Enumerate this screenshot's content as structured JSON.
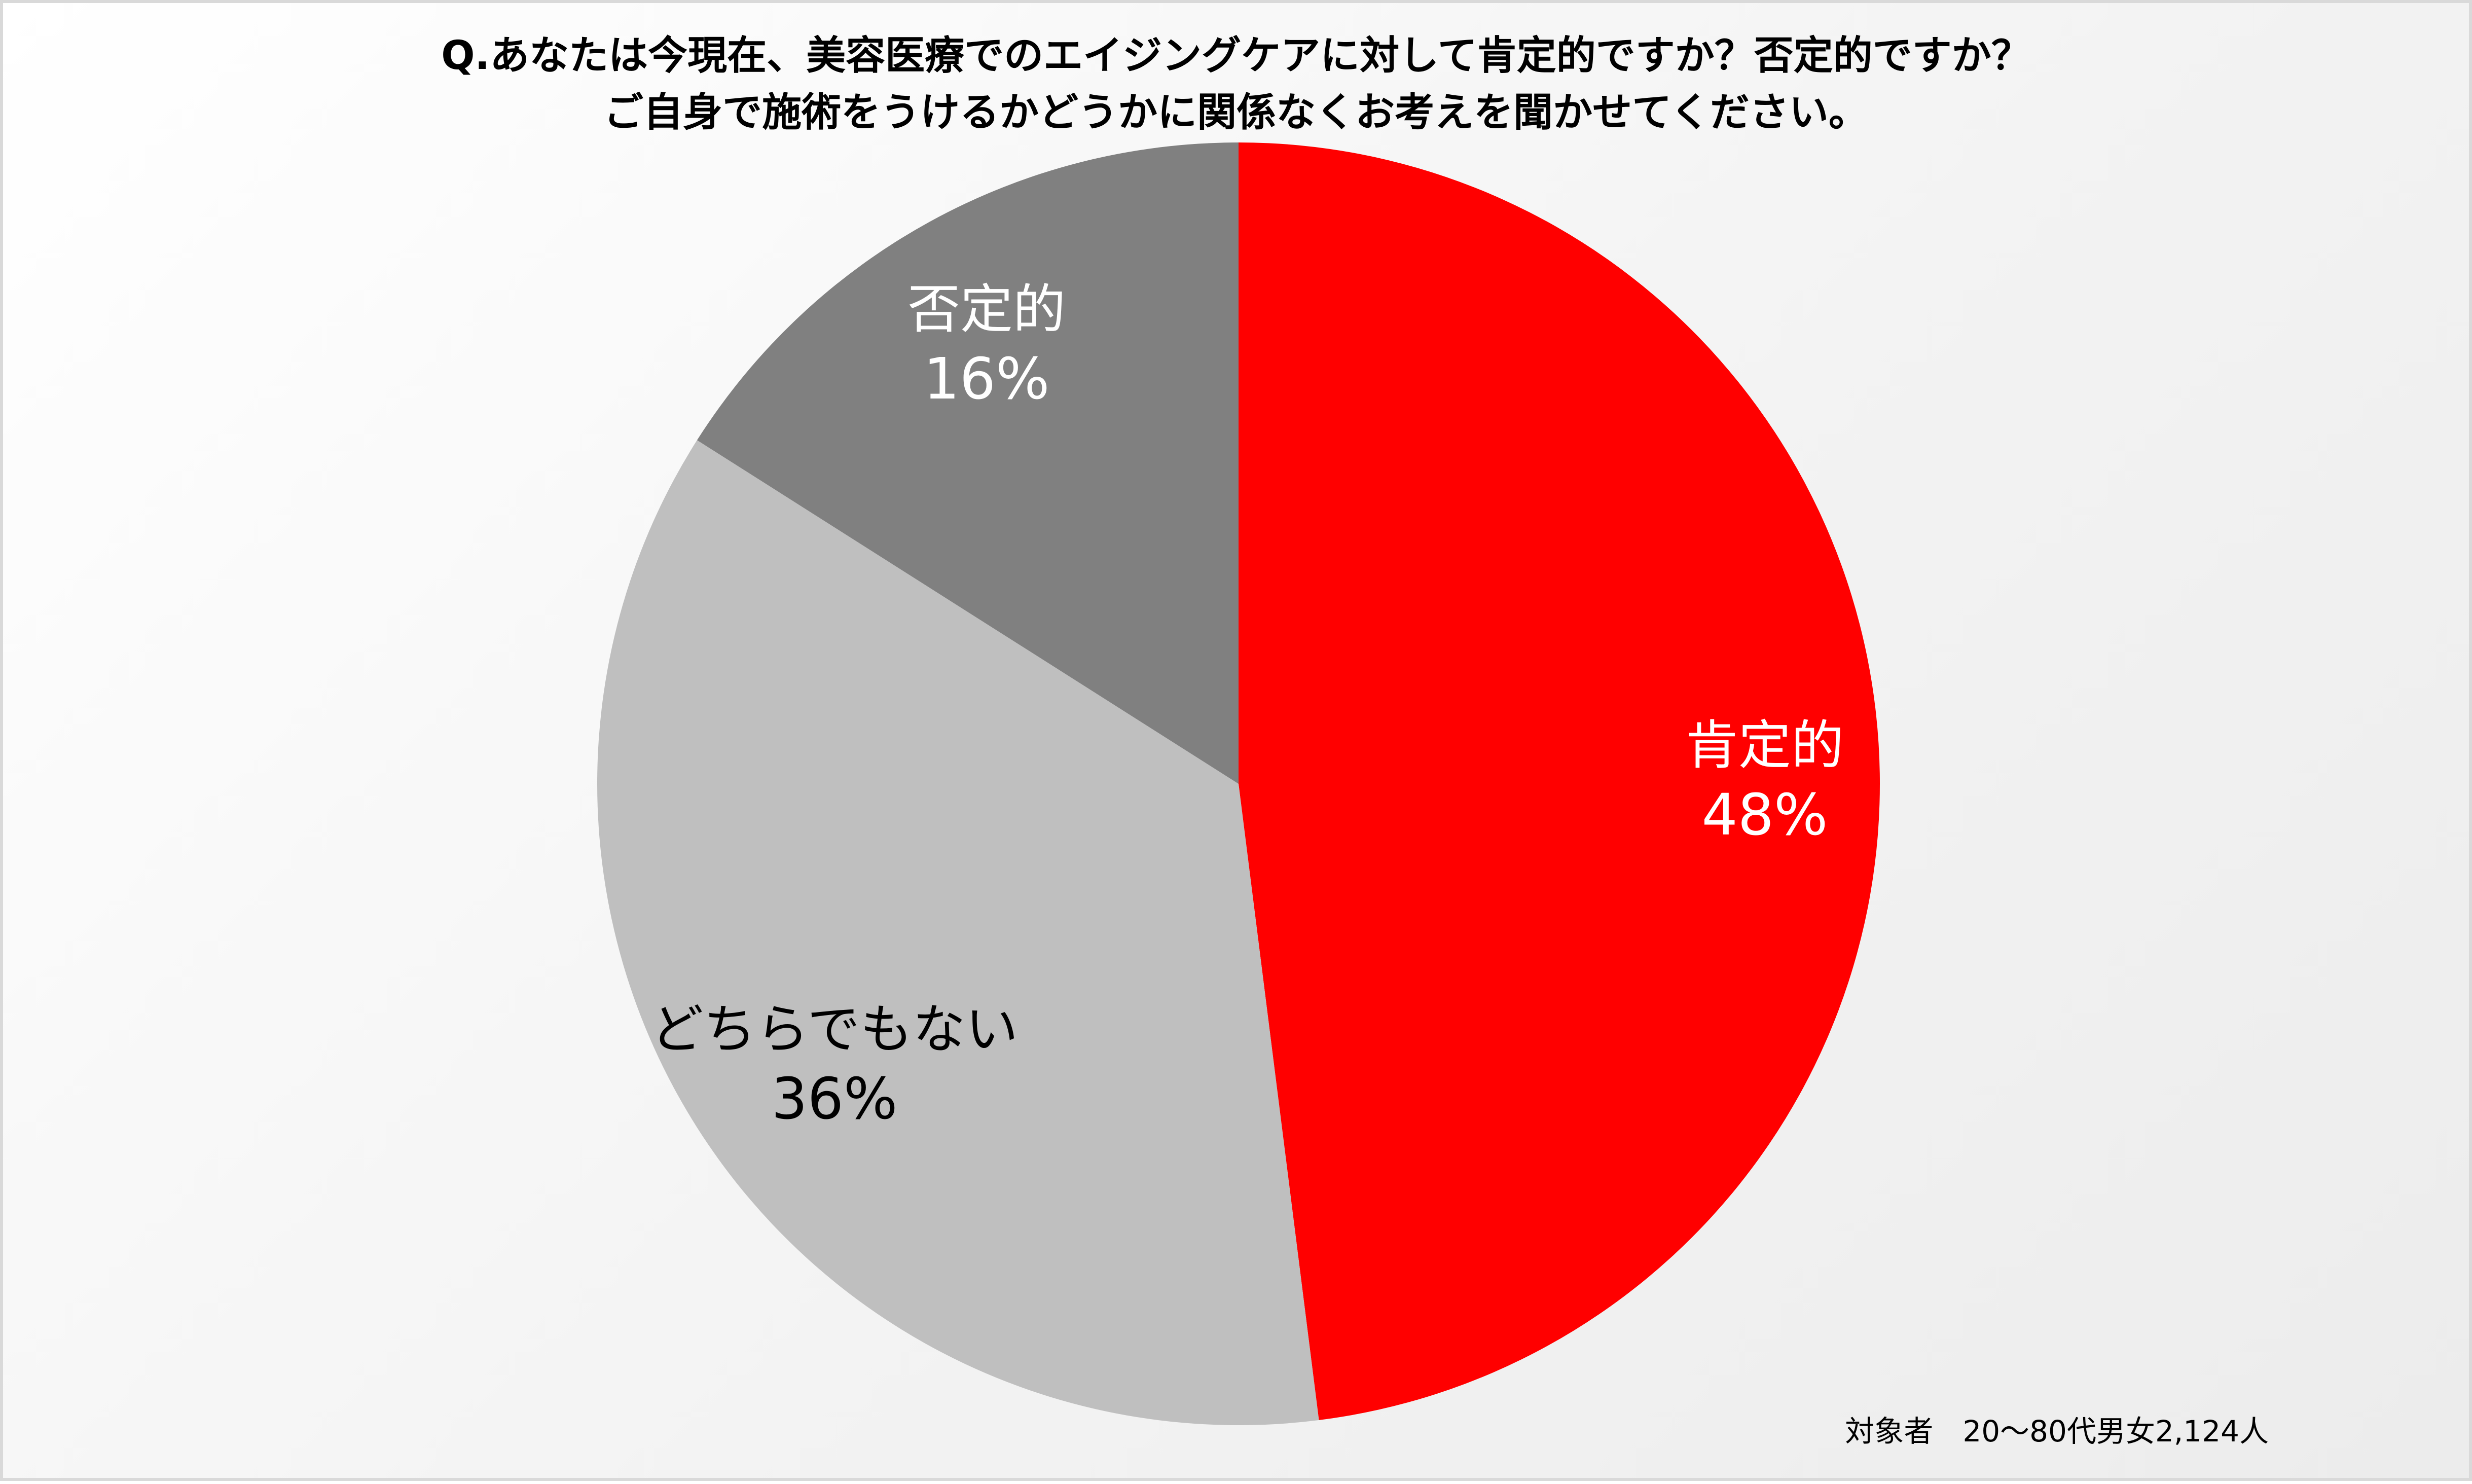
{
  "chart_data": {
    "type": "pie",
    "title": [
      "Q.あなたは今現在、美容医療でのエイジングケアに対して肯定的ですか？否定的ですか？",
      "ご自身で施術をうけるかどうかに関係なくお考えを聞かせてください。"
    ],
    "slices": [
      {
        "label": "肯定的",
        "value": 48,
        "value_label": "48%",
        "color": "#ff0000",
        "text_color": "#ffffff"
      },
      {
        "label": "どちらでもない",
        "value": 36,
        "value_label": "36%",
        "color": "#bfbfbf",
        "text_color": "#000000"
      },
      {
        "label": "否定的",
        "value": 16,
        "value_label": "16%",
        "color": "#808080",
        "text_color": "#ffffff"
      }
    ],
    "start": "12 o'clock",
    "direction": "clockwise",
    "legend": "none",
    "footnote": "対象者　20～80代男女2,124人"
  }
}
